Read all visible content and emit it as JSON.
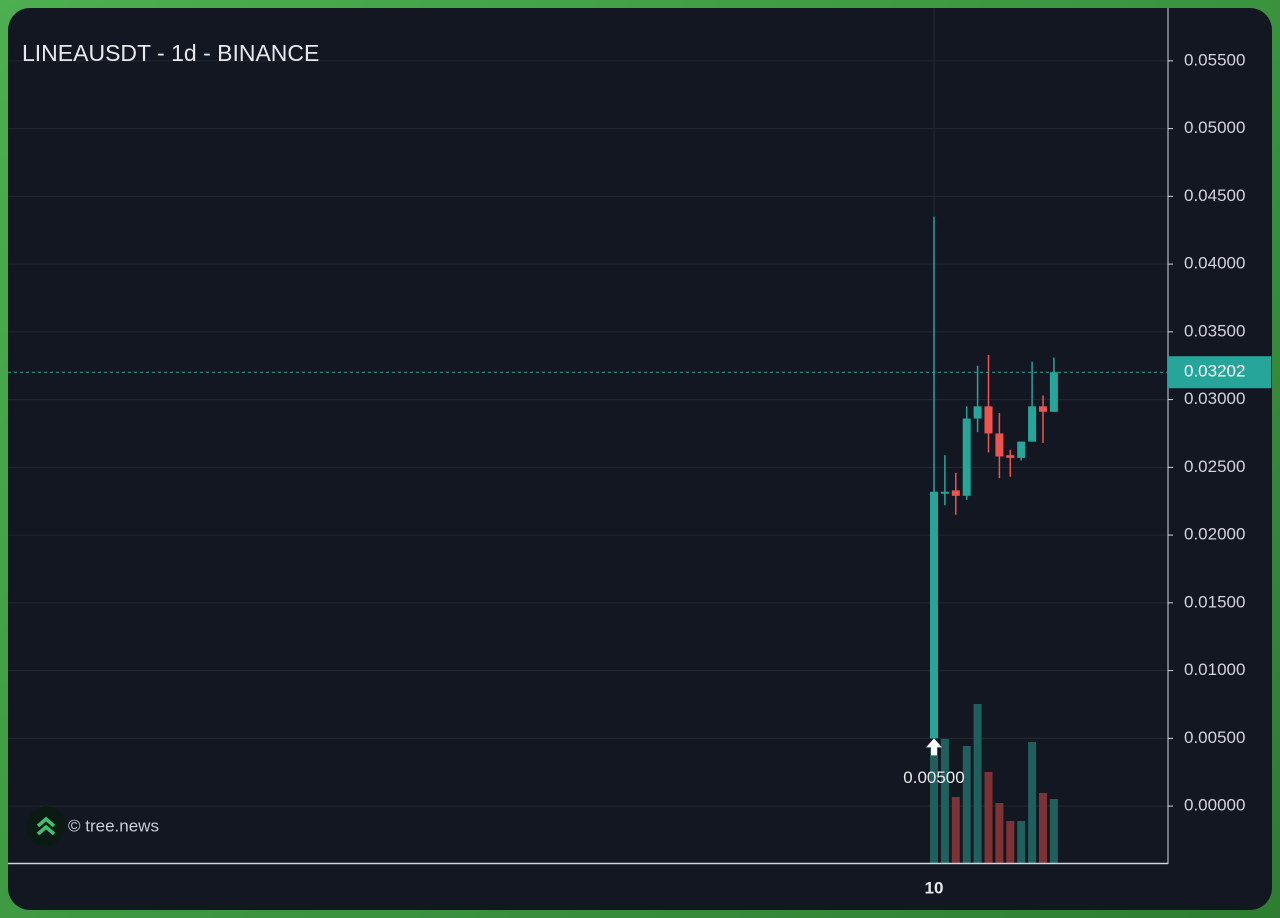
{
  "chart_data": {
    "type": "candlestick",
    "title": "LINEAUSDT - 1d - BINANCE",
    "watermark": "© tree.news",
    "categories": [
      "10",
      null,
      null,
      null,
      null,
      null,
      null,
      null,
      null,
      null,
      null,
      null
    ],
    "open": [
      0.005,
      0.0231,
      0.0233,
      0.0229,
      0.0286,
      0.0295,
      0.0275,
      0.0259,
      0.0257,
      0.0269,
      0.0295,
      0.0291
    ],
    "high": [
      0.0435,
      0.0259,
      0.0246,
      0.0295,
      0.0325,
      0.0333,
      0.029,
      0.0263,
      0.0269,
      0.0328,
      0.0303,
      0.0331
    ],
    "low": [
      0.005,
      0.0222,
      0.0215,
      0.0226,
      0.0276,
      0.0261,
      0.0242,
      0.0243,
      0.0255,
      0.0269,
      0.0268,
      0.0291
    ],
    "close": [
      0.0232,
      0.0232,
      0.0229,
      0.0286,
      0.0295,
      0.0275,
      0.0258,
      0.0257,
      0.0269,
      0.0295,
      0.0291,
      0.03202
    ],
    "volume": [
      117,
      124,
      66,
      117,
      159,
      91,
      60,
      42,
      42,
      121,
      70,
      64
    ],
    "up_color": "#26a69a",
    "down_color": "#ef5350",
    "volume_up_color": "#1f5f5c",
    "volume_down_color": "#7d3236",
    "ylim": [
      -0.0042,
      0.0589
    ],
    "yticks": [
      {
        "value": 0.0,
        "label": "0.00000"
      },
      {
        "value": 0.005,
        "label": "0.00500"
      },
      {
        "value": 0.01,
        "label": "0.01000"
      },
      {
        "value": 0.015,
        "label": "0.01500"
      },
      {
        "value": 0.02,
        "label": "0.02000"
      },
      {
        "value": 0.025,
        "label": "0.02500"
      },
      {
        "value": 0.03,
        "label": "0.03000"
      },
      {
        "value": 0.035,
        "label": "0.03500"
      },
      {
        "value": 0.04,
        "label": "0.04000"
      },
      {
        "value": 0.045,
        "label": "0.04500"
      },
      {
        "value": 0.05,
        "label": "0.05000"
      },
      {
        "value": 0.055,
        "label": "0.05500"
      }
    ],
    "last_price": {
      "value": 0.03202,
      "label": "0.03202"
    },
    "annotation": {
      "value": 0.005,
      "label": "0.00500"
    },
    "grid": true
  }
}
